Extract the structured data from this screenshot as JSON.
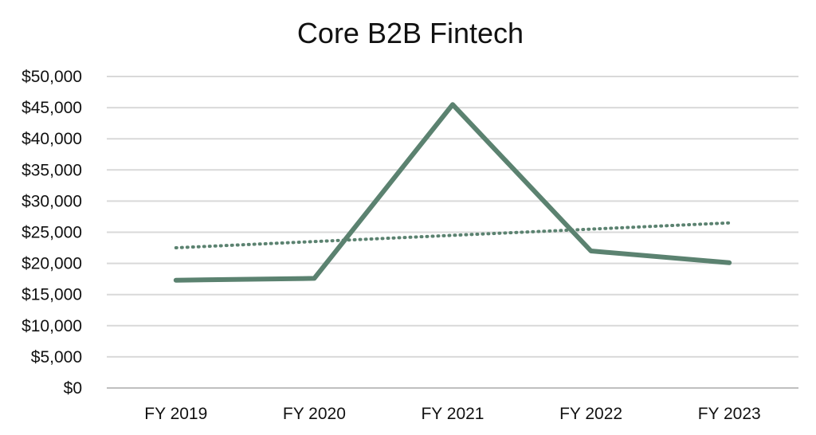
{
  "chart_data": {
    "type": "line",
    "title": "Core B2B Fintech",
    "xlabel": "",
    "ylabel": "",
    "categories": [
      "FY 2019",
      "FY 2020",
      "FY 2021",
      "FY 2022",
      "FY 2023"
    ],
    "series": [
      {
        "values": [
          17300,
          17600,
          45500,
          22000,
          20100
        ],
        "color": "#5b8270",
        "style": "solid"
      },
      {
        "values": [
          22500,
          23500,
          24500,
          25500,
          26500
        ],
        "color": "#5b8270",
        "style": "dotted",
        "role": "trendline"
      }
    ],
    "ylim": [
      0,
      50000
    ],
    "yticks": [
      0,
      5000,
      10000,
      15000,
      20000,
      25000,
      30000,
      35000,
      40000,
      45000,
      50000
    ],
    "ytick_labels": [
      "$0",
      "$5,000",
      "$10,000",
      "$15,000",
      "$20,000",
      "$25,000",
      "$30,000",
      "$35,000",
      "$40,000",
      "$45,000",
      "$50,000"
    ],
    "grid": true,
    "legend": "none"
  }
}
